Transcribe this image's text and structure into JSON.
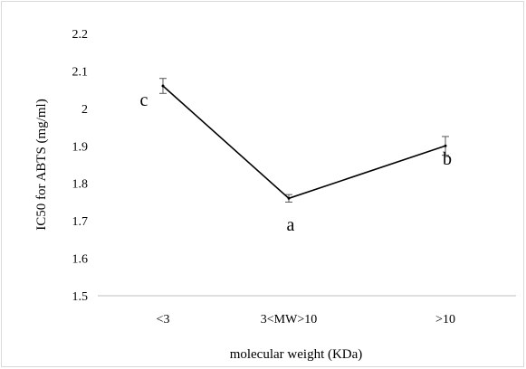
{
  "chart_data": {
    "type": "line",
    "title": "",
    "xlabel": "molecular weight (KDa)",
    "ylabel": "IC50 for ABTS (mg/ml)",
    "categories": [
      "<3",
      "3<MW>10",
      ">10"
    ],
    "series": [
      {
        "name": "",
        "values": [
          2.06,
          1.76,
          1.9
        ],
        "errors": [
          0.02,
          0.01,
          0.025
        ],
        "color": "#000000"
      }
    ],
    "annotations": [
      "c",
      "a",
      "b"
    ],
    "ylim": [
      1.5,
      2.2
    ],
    "yticks": [
      "1.5",
      "1.6",
      "1.7",
      "1.8",
      "1.9",
      "2",
      "2.1",
      "2.2"
    ],
    "grid": false,
    "legend": "none"
  }
}
